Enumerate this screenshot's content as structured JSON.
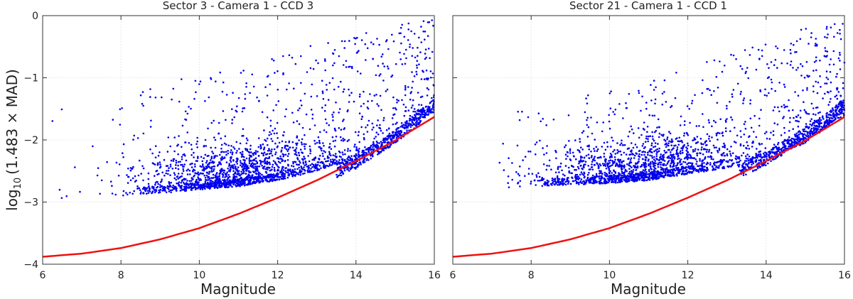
{
  "figure": {
    "ylabel_prefix": "log",
    "ylabel_sub": "10",
    "ylabel_rest": "(1.483 × MAD)",
    "xlabel": "Magnitude"
  },
  "chart_data": [
    {
      "type": "scatter",
      "title": "Sector 3 - Camera 1 - CCD 3",
      "xlabel": "Magnitude",
      "ylabel": "log10(1.483 × MAD)",
      "xlim": [
        6,
        16
      ],
      "ylim": [
        -4,
        0
      ],
      "xticks": [
        6,
        8,
        10,
        12,
        14,
        16
      ],
      "yticks": [
        -4,
        -3,
        -2,
        -1,
        0
      ],
      "grid": true,
      "legend": "none",
      "point_color": "#0000ee",
      "line_color": "#ee1111",
      "series": [
        {
          "kind": "points",
          "envelope": [
            {
              "x": 6.0,
              "lower": -2.95,
              "upper": -1.35
            },
            {
              "x": 7.0,
              "lower": -2.92,
              "upper": -1.25
            },
            {
              "x": 8.0,
              "lower": -2.9,
              "upper": -1.15
            },
            {
              "x": 9.0,
              "lower": -2.86,
              "upper": -1.05
            },
            {
              "x": 10.0,
              "lower": -2.8,
              "upper": -0.95
            },
            {
              "x": 11.0,
              "lower": -2.75,
              "upper": -0.8
            },
            {
              "x": 12.0,
              "lower": -2.65,
              "upper": -0.6
            },
            {
              "x": 13.0,
              "lower": -2.5,
              "upper": -0.45
            },
            {
              "x": 14.0,
              "lower": -2.25,
              "upper": -0.3
            },
            {
              "x": 15.0,
              "lower": -1.95,
              "upper": -0.15
            },
            {
              "x": 16.0,
              "lower": -1.5,
              "upper": -0.05
            }
          ],
          "density_peak": {
            "x": 11.0,
            "y": -2.6
          },
          "bright_sequence": [
            {
              "x": 13.5,
              "y": -2.5
            },
            {
              "x": 14.0,
              "y": -2.35
            },
            {
              "x": 14.5,
              "y": -2.15
            },
            {
              "x": 15.0,
              "y": -1.95
            },
            {
              "x": 15.5,
              "y": -1.7
            },
            {
              "x": 16.0,
              "y": -1.45
            }
          ]
        },
        {
          "kind": "line",
          "points": [
            {
              "x": 6.0,
              "y": -3.88
            },
            {
              "x": 7.0,
              "y": -3.83
            },
            {
              "x": 8.0,
              "y": -3.74
            },
            {
              "x": 9.0,
              "y": -3.6
            },
            {
              "x": 10.0,
              "y": -3.42
            },
            {
              "x": 11.0,
              "y": -3.19
            },
            {
              "x": 12.0,
              "y": -2.93
            },
            {
              "x": 13.0,
              "y": -2.65
            },
            {
              "x": 14.0,
              "y": -2.34
            },
            {
              "x": 15.0,
              "y": -2.01
            },
            {
              "x": 16.0,
              "y": -1.63
            }
          ]
        }
      ]
    },
    {
      "type": "scatter",
      "title": "Sector 21 - Camera 1 - CCD 1",
      "xlabel": "Magnitude",
      "ylabel": "",
      "xlim": [
        6,
        16
      ],
      "ylim": [
        -4,
        0
      ],
      "xticks": [
        6,
        8,
        10,
        12,
        14,
        16
      ],
      "yticks": [
        -4,
        -3,
        -2,
        -1,
        0
      ],
      "grid": true,
      "legend": "none",
      "point_color": "#0000ee",
      "line_color": "#ee1111",
      "series": [
        {
          "kind": "points",
          "envelope": [
            {
              "x": 6.0,
              "lower": -2.8,
              "upper": -1.7
            },
            {
              "x": 7.0,
              "lower": -2.78,
              "upper": -1.6
            },
            {
              "x": 8.0,
              "lower": -2.75,
              "upper": -1.5
            },
            {
              "x": 9.0,
              "lower": -2.72,
              "upper": -1.35
            },
            {
              "x": 10.0,
              "lower": -2.7,
              "upper": -1.2
            },
            {
              "x": 11.0,
              "lower": -2.65,
              "upper": -1.0
            },
            {
              "x": 12.0,
              "lower": -2.55,
              "upper": -0.8
            },
            {
              "x": 13.0,
              "lower": -2.45,
              "upper": -0.6
            },
            {
              "x": 14.0,
              "lower": -2.3,
              "upper": -0.4
            },
            {
              "x": 15.0,
              "lower": -2.05,
              "upper": -0.2
            },
            {
              "x": 16.0,
              "lower": -1.6,
              "upper": -0.1
            }
          ],
          "density_peak": {
            "x": 10.8,
            "y": -2.5
          },
          "bright_sequence": [
            {
              "x": 13.3,
              "y": -2.5
            },
            {
              "x": 14.0,
              "y": -2.3
            },
            {
              "x": 14.5,
              "y": -2.1
            },
            {
              "x": 15.0,
              "y": -1.9
            },
            {
              "x": 15.5,
              "y": -1.7
            },
            {
              "x": 16.0,
              "y": -1.45
            }
          ]
        },
        {
          "kind": "line",
          "points": [
            {
              "x": 6.0,
              "y": -3.88
            },
            {
              "x": 7.0,
              "y": -3.83
            },
            {
              "x": 8.0,
              "y": -3.74
            },
            {
              "x": 9.0,
              "y": -3.6
            },
            {
              "x": 10.0,
              "y": -3.42
            },
            {
              "x": 11.0,
              "y": -3.19
            },
            {
              "x": 12.0,
              "y": -2.93
            },
            {
              "x": 13.0,
              "y": -2.65
            },
            {
              "x": 14.0,
              "y": -2.34
            },
            {
              "x": 15.0,
              "y": -2.01
            },
            {
              "x": 16.0,
              "y": -1.63
            }
          ]
        }
      ]
    }
  ]
}
